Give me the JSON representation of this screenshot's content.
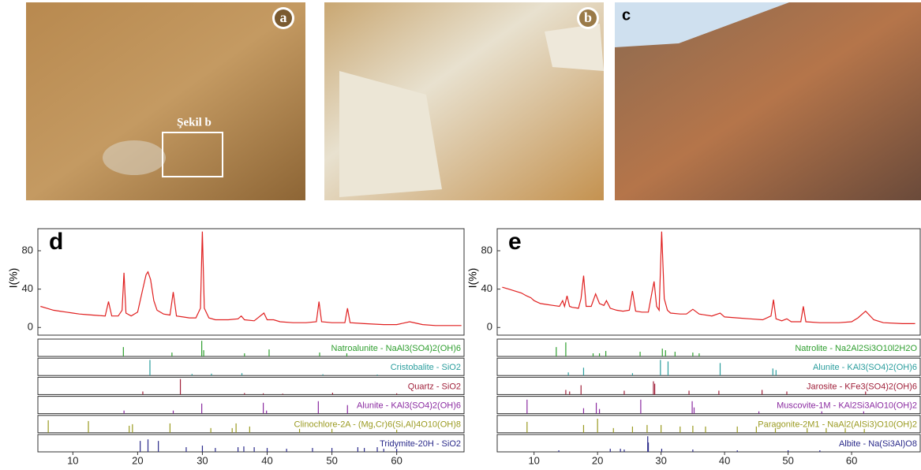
{
  "photos": [
    {
      "label": "a"
    },
    {
      "label": "b"
    },
    {
      "label": "c"
    }
  ],
  "photo_note": "Şekil b",
  "chart_data": [
    {
      "type": "xrd",
      "panel_label": "d",
      "ylabel": "I(%)",
      "color": "#e02020",
      "xlim": [
        4.6,
        70.4
      ],
      "ylim": [
        -8,
        103
      ],
      "xticks": [
        10,
        20,
        30,
        40,
        50,
        60
      ],
      "yticks": [
        0,
        40,
        80
      ],
      "x": [
        5,
        6,
        7,
        8,
        9,
        10,
        11,
        12,
        13,
        14,
        15,
        15.5,
        16,
        17,
        17.6,
        17.9,
        18.2,
        19,
        20,
        20.8,
        21.3,
        21.6,
        22,
        22.5,
        23,
        24,
        25,
        25.5,
        26,
        27,
        28,
        29,
        29.7,
        30,
        30.3,
        31,
        32,
        34,
        35.5,
        36,
        36.5,
        38,
        39.5,
        40,
        41,
        42,
        44,
        46,
        47.6,
        48,
        48.4,
        50,
        52,
        52.4,
        52.8,
        55,
        58,
        60,
        62,
        64,
        66,
        68,
        70
      ],
      "values": [
        22,
        20,
        18,
        17,
        16,
        15,
        14,
        13.5,
        13,
        12.5,
        12,
        27,
        12,
        12,
        18,
        57,
        15,
        12,
        16,
        40,
        55,
        58,
        50,
        28,
        18,
        14,
        13,
        37,
        12,
        11,
        10,
        10,
        20,
        100,
        20,
        10,
        8,
        8,
        9,
        12,
        8,
        7,
        15,
        8,
        8,
        6,
        5,
        5,
        6,
        27,
        6,
        5,
        5,
        20,
        5,
        4,
        3,
        3,
        6,
        3,
        2,
        2,
        2
      ],
      "phases": [
        {
          "name": "Natroalunite - NaAl3(SO4)2(OH)6",
          "color": "#2e9e2e",
          "x": [
            17.8,
            25.3,
            29.9,
            30.2,
            36.5,
            40.3,
            48.1,
            52.3
          ],
          "values": [
            60,
            25,
            100,
            40,
            20,
            45,
            25,
            20
          ]
        },
        {
          "name": "Cristobalite - SiO2",
          "color": "#2a9d9d",
          "x": [
            21.9,
            28.4,
            31.4,
            36.1,
            48.6,
            57
          ],
          "values": [
            100,
            10,
            12,
            15,
            8,
            6
          ]
        },
        {
          "name": "Quartz - SiO2",
          "color": "#a0203a",
          "x": [
            20.8,
            26.6,
            36.5,
            39.4,
            42.4,
            50.1,
            60
          ],
          "values": [
            20,
            100,
            10,
            8,
            6,
            12,
            8
          ]
        },
        {
          "name": "Alunite - KAl3(SO4)2(OH)6",
          "color": "#8a2aa0",
          "x": [
            17.9,
            25.5,
            29.9,
            39.4,
            39.9,
            47.9,
            52.4
          ],
          "values": [
            20,
            20,
            65,
            70,
            20,
            80,
            55
          ]
        },
        {
          "name": "Clinochlore-2A - (Mg,Cr)6(Si,Al)4O10(OH)8",
          "color": "#9a9a20",
          "x": [
            6.2,
            12.4,
            18.7,
            19.2,
            25,
            31.3,
            34.6,
            35.2,
            37.3,
            45,
            50,
            60
          ],
          "values": [
            80,
            75,
            45,
            55,
            60,
            30,
            30,
            60,
            40,
            25,
            25,
            20
          ]
        },
        {
          "name": "Tridymite-20H - SiO2",
          "color": "#2a2a8a",
          "x": [
            20.4,
            21.6,
            23.2,
            27.5,
            30,
            32,
            35.5,
            36.4,
            38,
            40,
            43,
            47,
            50,
            54,
            55,
            57,
            58,
            60
          ],
          "values": [
            70,
            80,
            70,
            30,
            40,
            25,
            30,
            35,
            30,
            25,
            20,
            25,
            25,
            30,
            25,
            30,
            20,
            20
          ]
        }
      ]
    },
    {
      "type": "xrd",
      "panel_label": "e",
      "ylabel": "I(%)",
      "color": "#e02020",
      "xlim": [
        4.2,
        70.8
      ],
      "ylim": [
        -8,
        103
      ],
      "xticks": [
        10,
        20,
        30,
        40,
        50,
        60
      ],
      "yticks": [
        0,
        40,
        80
      ],
      "x": [
        5,
        6,
        7,
        8,
        8.8,
        9.5,
        10,
        11,
        12,
        13,
        14,
        14.5,
        14.8,
        15.2,
        15.6,
        16,
        17,
        17.4,
        17.8,
        18.2,
        19,
        19.7,
        20.3,
        21,
        21.4,
        22,
        23,
        24,
        25,
        25.5,
        26,
        27,
        28,
        28.6,
        28.9,
        29.3,
        29.7,
        30.1,
        30.5,
        31,
        31.5,
        33,
        34,
        35,
        36,
        38,
        39.3,
        40,
        42,
        44,
        46,
        47.3,
        47.7,
        48.1,
        49,
        49.8,
        50.5,
        52,
        52.4,
        52.8,
        55,
        58,
        60,
        61,
        62.2,
        63.5,
        65,
        68,
        70
      ],
      "values": [
        42,
        40,
        38,
        36,
        33,
        31,
        28,
        25,
        24,
        23,
        22,
        28,
        22,
        33,
        22,
        21,
        20,
        30,
        54,
        22,
        22,
        35,
        25,
        23,
        28,
        20,
        18,
        17,
        18,
        38,
        17,
        16,
        16,
        38,
        48,
        22,
        18,
        100,
        30,
        18,
        15,
        14,
        14,
        19,
        14,
        12,
        15,
        11,
        10,
        9,
        8,
        12,
        29,
        9,
        7,
        9,
        6,
        6,
        22,
        6,
        5,
        5,
        6,
        10,
        17,
        8,
        5,
        4,
        4
      ],
      "phases": [
        {
          "name": "Natrolite - Na2Al2Si3O10l2H2O",
          "color": "#2e9e2e",
          "x": [
            13.5,
            15,
            19.3,
            20.3,
            21.3,
            26.7,
            30.2,
            30.7,
            32.2,
            35,
            36
          ],
          "values": [
            60,
            90,
            20,
            20,
            35,
            30,
            50,
            40,
            30,
            25,
            20
          ]
        },
        {
          "name": "Alunite - KAl3(SO4)2(OH)6",
          "color": "#2a9d9d",
          "x": [
            15.4,
            17.8,
            25.5,
            29.9,
            31.1,
            39.3,
            47.6,
            48.1
          ],
          "values": [
            20,
            50,
            15,
            100,
            90,
            80,
            45,
            35
          ]
        },
        {
          "name": "Jarosite - KFe3(SO4)2(OH)6",
          "color": "#a0203a",
          "x": [
            15,
            15.6,
            17.4,
            24.2,
            28.8,
            29,
            34.4,
            39.1,
            45.9,
            49.8,
            62.2
          ],
          "values": [
            30,
            20,
            60,
            25,
            85,
            70,
            25,
            25,
            30,
            20,
            20
          ]
        },
        {
          "name": "Muscovite-1M - KAl2Si3AlO10(OH)2",
          "color": "#8a2aa0",
          "x": [
            8.9,
            17.8,
            19.8,
            20.3,
            26.8,
            34.9,
            35.2,
            45.4,
            55.3,
            61.9
          ],
          "values": [
            90,
            35,
            70,
            30,
            90,
            80,
            40,
            15,
            15,
            15
          ]
        },
        {
          "name": "Paragonite-2M1 - NaAl2(AlSi3)O10(OH)2",
          "color": "#9a9a20",
          "x": [
            8.9,
            17.8,
            20,
            22.5,
            25.5,
            27.8,
            30,
            33,
            35,
            37,
            42,
            45,
            48,
            53,
            56,
            59,
            62
          ],
          "values": [
            70,
            50,
            90,
            30,
            40,
            50,
            50,
            40,
            45,
            40,
            40,
            40,
            30,
            30,
            30,
            30,
            25
          ]
        },
        {
          "name": "Albite - Na(Si3Al)O8",
          "color": "#2a2a8a",
          "x": [
            13.9,
            22,
            23.6,
            24.2,
            27.9,
            28,
            30.1,
            35,
            42,
            50,
            55
          ],
          "values": [
            10,
            20,
            20,
            15,
            100,
            60,
            20,
            15,
            10,
            10,
            10
          ]
        }
      ]
    }
  ]
}
